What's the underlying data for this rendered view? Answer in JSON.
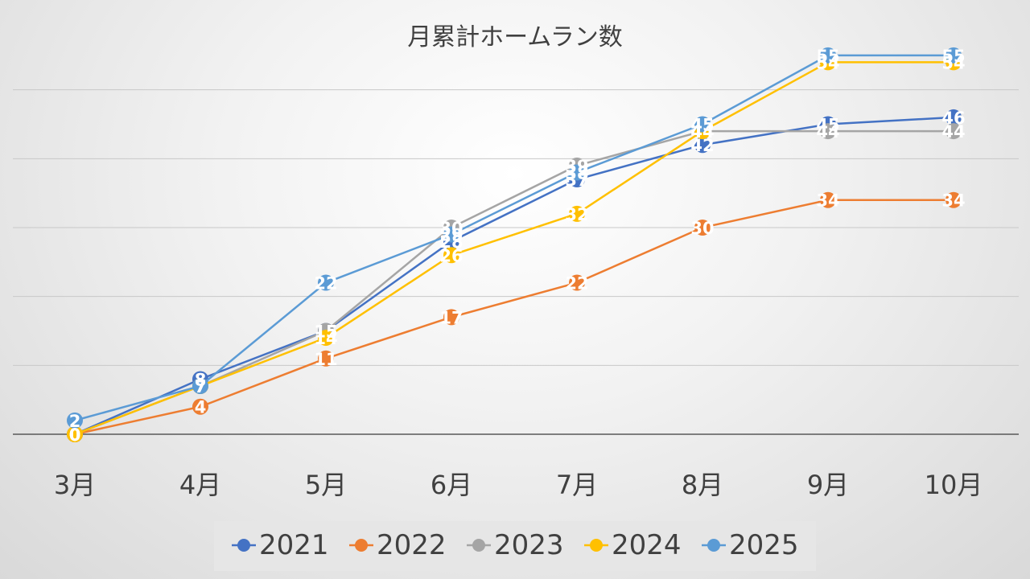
{
  "chart_data": {
    "type": "line",
    "title": "月累計ホームラン数",
    "xlabel": "",
    "ylabel": "",
    "categories": [
      "3月",
      "4月",
      "5月",
      "6月",
      "7月",
      "8月",
      "9月",
      "10月"
    ],
    "ylim": [
      0,
      60
    ],
    "ytick_step": 10,
    "y_tick_labels_visible": false,
    "grid": true,
    "legend": "bottom",
    "series": [
      {
        "name": "2021",
        "color": "#4472C4",
        "values": [
          0,
          8,
          15,
          28,
          37,
          42,
          45,
          46
        ]
      },
      {
        "name": "2022",
        "color": "#ED7D31",
        "values": [
          0,
          4,
          11,
          17,
          22,
          30,
          34,
          34
        ]
      },
      {
        "name": "2023",
        "color": "#A5A5A5",
        "values": [
          0,
          7,
          15,
          30,
          39,
          44,
          44,
          44
        ]
      },
      {
        "name": "2024",
        "color": "#FFC000",
        "values": [
          0,
          7,
          14,
          26,
          32,
          44,
          54,
          54
        ]
      },
      {
        "name": "2025",
        "color": "#5B9BD5",
        "values": [
          2,
          7,
          22,
          29,
          38,
          45,
          55,
          55
        ]
      }
    ]
  }
}
